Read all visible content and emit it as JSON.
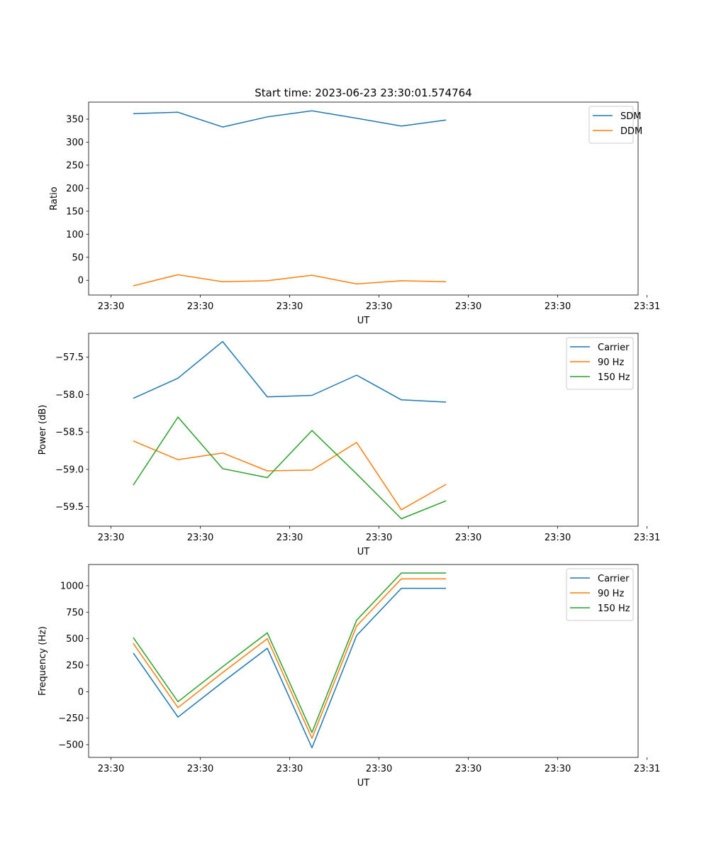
{
  "figure": {
    "title": "Start time: 2023-06-23 23:30:01.574764"
  },
  "chart_data": [
    {
      "type": "line",
      "xlabel": "UT",
      "ylabel": "Ratio",
      "x_tick_labels": [
        "23:30",
        "23:30",
        "23:30",
        "23:30",
        "23:30",
        "23:30",
        "23:31"
      ],
      "x": [
        6.5,
        7.5,
        8.5,
        9.5,
        10.5,
        11.5,
        12.5,
        13.5
      ],
      "xlim": [
        5.5,
        17.8
      ],
      "ylim": [
        -32,
        387
      ],
      "y_ticks": [
        0,
        50,
        100,
        150,
        200,
        250,
        300,
        350
      ],
      "y_tick_labels": [
        "0",
        "50",
        "100",
        "150",
        "200",
        "250",
        "300",
        "350"
      ],
      "legend_position": "top-right",
      "grid": false,
      "series": [
        {
          "name": "SDM",
          "color": "#1f77b4",
          "values": [
            362,
            365,
            333,
            355,
            368,
            352,
            335,
            348
          ]
        },
        {
          "name": "DDM",
          "color": "#ff7f0e",
          "values": [
            -12,
            12,
            -3,
            -1,
            11,
            -8,
            -1,
            -3
          ]
        }
      ]
    },
    {
      "type": "line",
      "xlabel": "UT",
      "ylabel": "Power (dB)",
      "x_tick_labels": [
        "23:30",
        "23:30",
        "23:30",
        "23:30",
        "23:30",
        "23:30",
        "23:31"
      ],
      "x": [
        6.5,
        7.5,
        8.5,
        9.5,
        10.5,
        11.5,
        12.5,
        13.5
      ],
      "xlim": [
        5.5,
        17.8
      ],
      "ylim": [
        -59.76,
        -57.18
      ],
      "y_ticks": [
        -59.5,
        -59.0,
        -58.5,
        -58.0,
        -57.5
      ],
      "y_tick_labels": [
        "−59.5",
        "−59.0",
        "−58.5",
        "−58.0",
        "−57.5"
      ],
      "legend_position": "top-right",
      "grid": false,
      "series": [
        {
          "name": "Carrier",
          "color": "#1f77b4",
          "values": [
            -58.05,
            -57.78,
            -57.29,
            -58.03,
            -58.01,
            -57.74,
            -58.07,
            -58.1
          ]
        },
        {
          "name": "90 Hz",
          "color": "#ff7f0e",
          "values": [
            -58.62,
            -58.87,
            -58.78,
            -59.02,
            -59.01,
            -58.64,
            -59.54,
            -59.2
          ]
        },
        {
          "name": "150 Hz",
          "color": "#2ca02c",
          "values": [
            -59.21,
            -58.3,
            -58.99,
            -59.11,
            -58.48,
            -59.06,
            -59.66,
            -59.42
          ]
        }
      ]
    },
    {
      "type": "line",
      "xlabel": "UT",
      "ylabel": "Frequency (Hz)",
      "x_tick_labels": [
        "23:30",
        "23:30",
        "23:30",
        "23:30",
        "23:30",
        "23:30",
        "23:31"
      ],
      "x": [
        6.5,
        7.5,
        8.5,
        9.5,
        10.5,
        11.5,
        12.5,
        13.5
      ],
      "xlim": [
        5.5,
        17.8
      ],
      "ylim": [
        -620,
        1200
      ],
      "y_ticks": [
        -500,
        -250,
        0,
        250,
        500,
        750,
        1000
      ],
      "y_tick_labels": [
        "−500",
        "−250",
        "0",
        "250",
        "500",
        "750",
        "1000"
      ],
      "legend_position": "top-right",
      "grid": false,
      "series": [
        {
          "name": "Carrier",
          "color": "#1f77b4",
          "values": [
            365,
            -240,
            90,
            410,
            -530,
            530,
            975,
            975
          ]
        },
        {
          "name": "90 Hz",
          "color": "#ff7f0e",
          "values": [
            455,
            -150,
            180,
            500,
            -440,
            620,
            1065,
            1065
          ]
        },
        {
          "name": "150 Hz",
          "color": "#2ca02c",
          "values": [
            510,
            -95,
            235,
            555,
            -385,
            675,
            1120,
            1120
          ]
        }
      ]
    }
  ]
}
